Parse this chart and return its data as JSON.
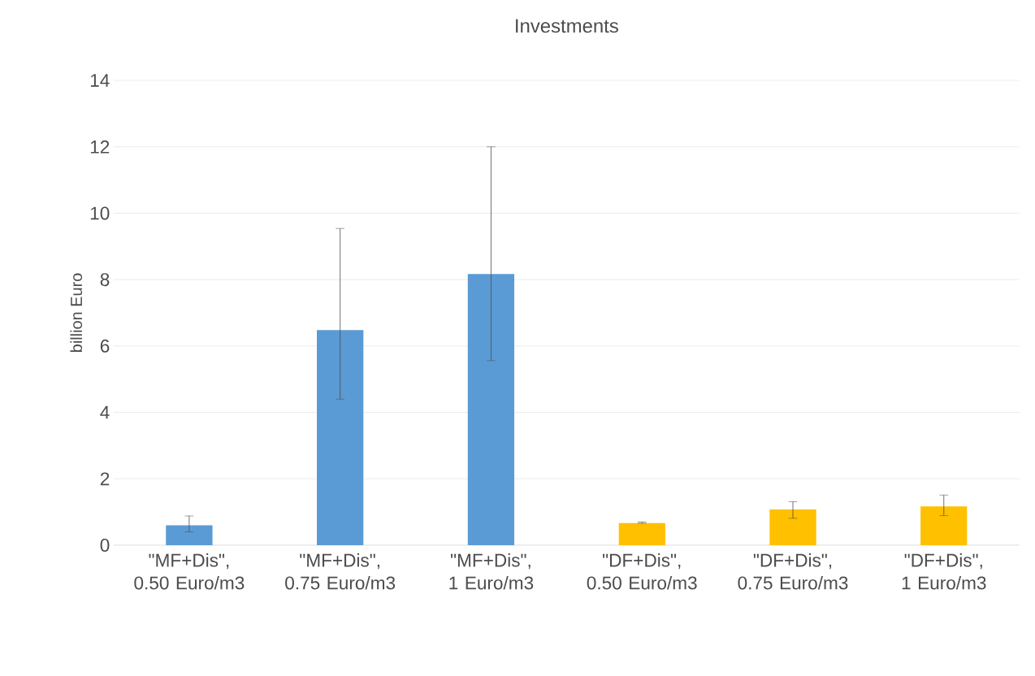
{
  "chart_data": {
    "type": "bar",
    "title": "Investments",
    "ylabel": "billion Euro",
    "categories": [
      "\"MF+Dis\", 0.50 Euro/m3",
      "\"MF+Dis\", 0.75 Euro/m3",
      "\"MF+Dis\", 1 Euro/m3",
      "\"DF+Dis\", 0.50 Euro/m3",
      "\"DF+Dis\", 0.75 Euro/m3",
      "\"DF+Dis\", 1 Euro/m3"
    ],
    "values": [
      0.6,
      6.48,
      8.17,
      0.67,
      1.08,
      1.17
    ],
    "colors": [
      "#5b9bd5",
      "#5b9bd5",
      "#5b9bd5",
      "#ffc000",
      "#ffc000",
      "#ffc000"
    ],
    "errors": [
      [
        0.4,
        0.88
      ],
      [
        4.4,
        9.54
      ],
      [
        5.56,
        12.0
      ],
      [
        0.66,
        0.7
      ],
      [
        0.81,
        1.31
      ],
      [
        0.89,
        1.51
      ]
    ],
    "ylim": [
      0,
      14
    ],
    "yticks": [
      0,
      2,
      4,
      6,
      8,
      10,
      12,
      14
    ],
    "grid": "y"
  }
}
